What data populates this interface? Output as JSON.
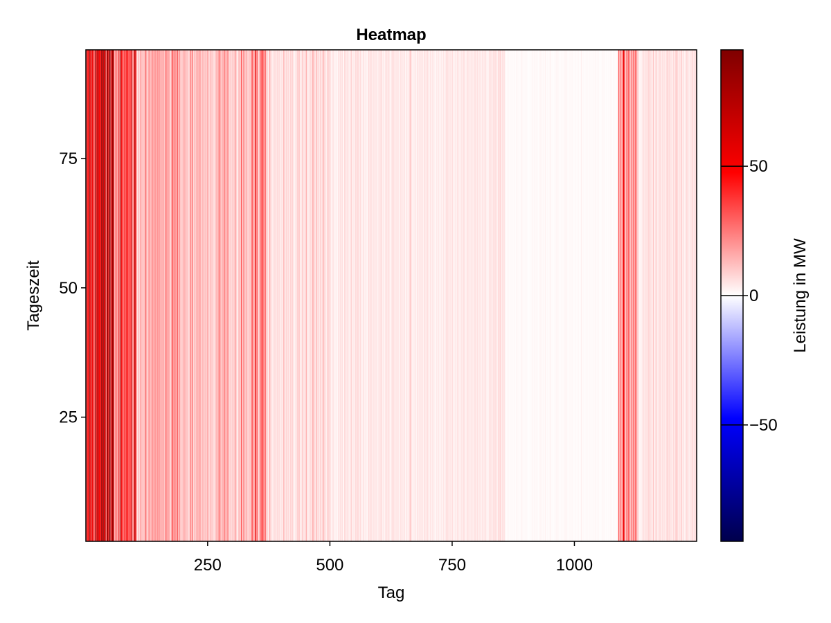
{
  "chart_data": {
    "type": "heatmap",
    "title": "Heatmap",
    "xlabel": "Tag",
    "ylabel": "Tageszeit",
    "xlim": [
      1,
      1250
    ],
    "ylim": [
      1,
      96
    ],
    "xticks": [
      250,
      500,
      750,
      1000
    ],
    "yticks": [
      25,
      50,
      75
    ],
    "grid": false,
    "colorbar": {
      "label": "Leistung in MW",
      "range": [
        -95,
        95
      ],
      "ticks": [
        -50,
        0,
        50
      ],
      "tick_labels": [
        "−50",
        "0",
        "50"
      ],
      "colormap": [
        "#00004c",
        "#0000ff",
        "#ffffff",
        "#ff0000",
        "#7f0000"
      ]
    },
    "day_profile": [
      {
        "from": 1,
        "to": 20,
        "value": 38
      },
      {
        "from": 20,
        "to": 40,
        "value": 55
      },
      {
        "from": 40,
        "to": 60,
        "value": 62
      },
      {
        "from": 60,
        "to": 100,
        "value": 30
      },
      {
        "from": 100,
        "to": 200,
        "value": 14
      },
      {
        "from": 200,
        "to": 340,
        "value": 11
      },
      {
        "from": 340,
        "to": 370,
        "value": 20
      },
      {
        "from": 370,
        "to": 500,
        "value": 6
      },
      {
        "from": 500,
        "to": 860,
        "value": 4
      },
      {
        "from": 860,
        "to": 1090,
        "value": 1
      },
      {
        "from": 1090,
        "to": 1130,
        "value": 22
      },
      {
        "from": 1130,
        "to": 1250,
        "value": 5
      }
    ],
    "highlight_days": [
      {
        "day": 100,
        "value": 70
      },
      {
        "day": 360,
        "value": 40
      },
      {
        "day": 1100,
        "value": 55
      }
    ]
  }
}
